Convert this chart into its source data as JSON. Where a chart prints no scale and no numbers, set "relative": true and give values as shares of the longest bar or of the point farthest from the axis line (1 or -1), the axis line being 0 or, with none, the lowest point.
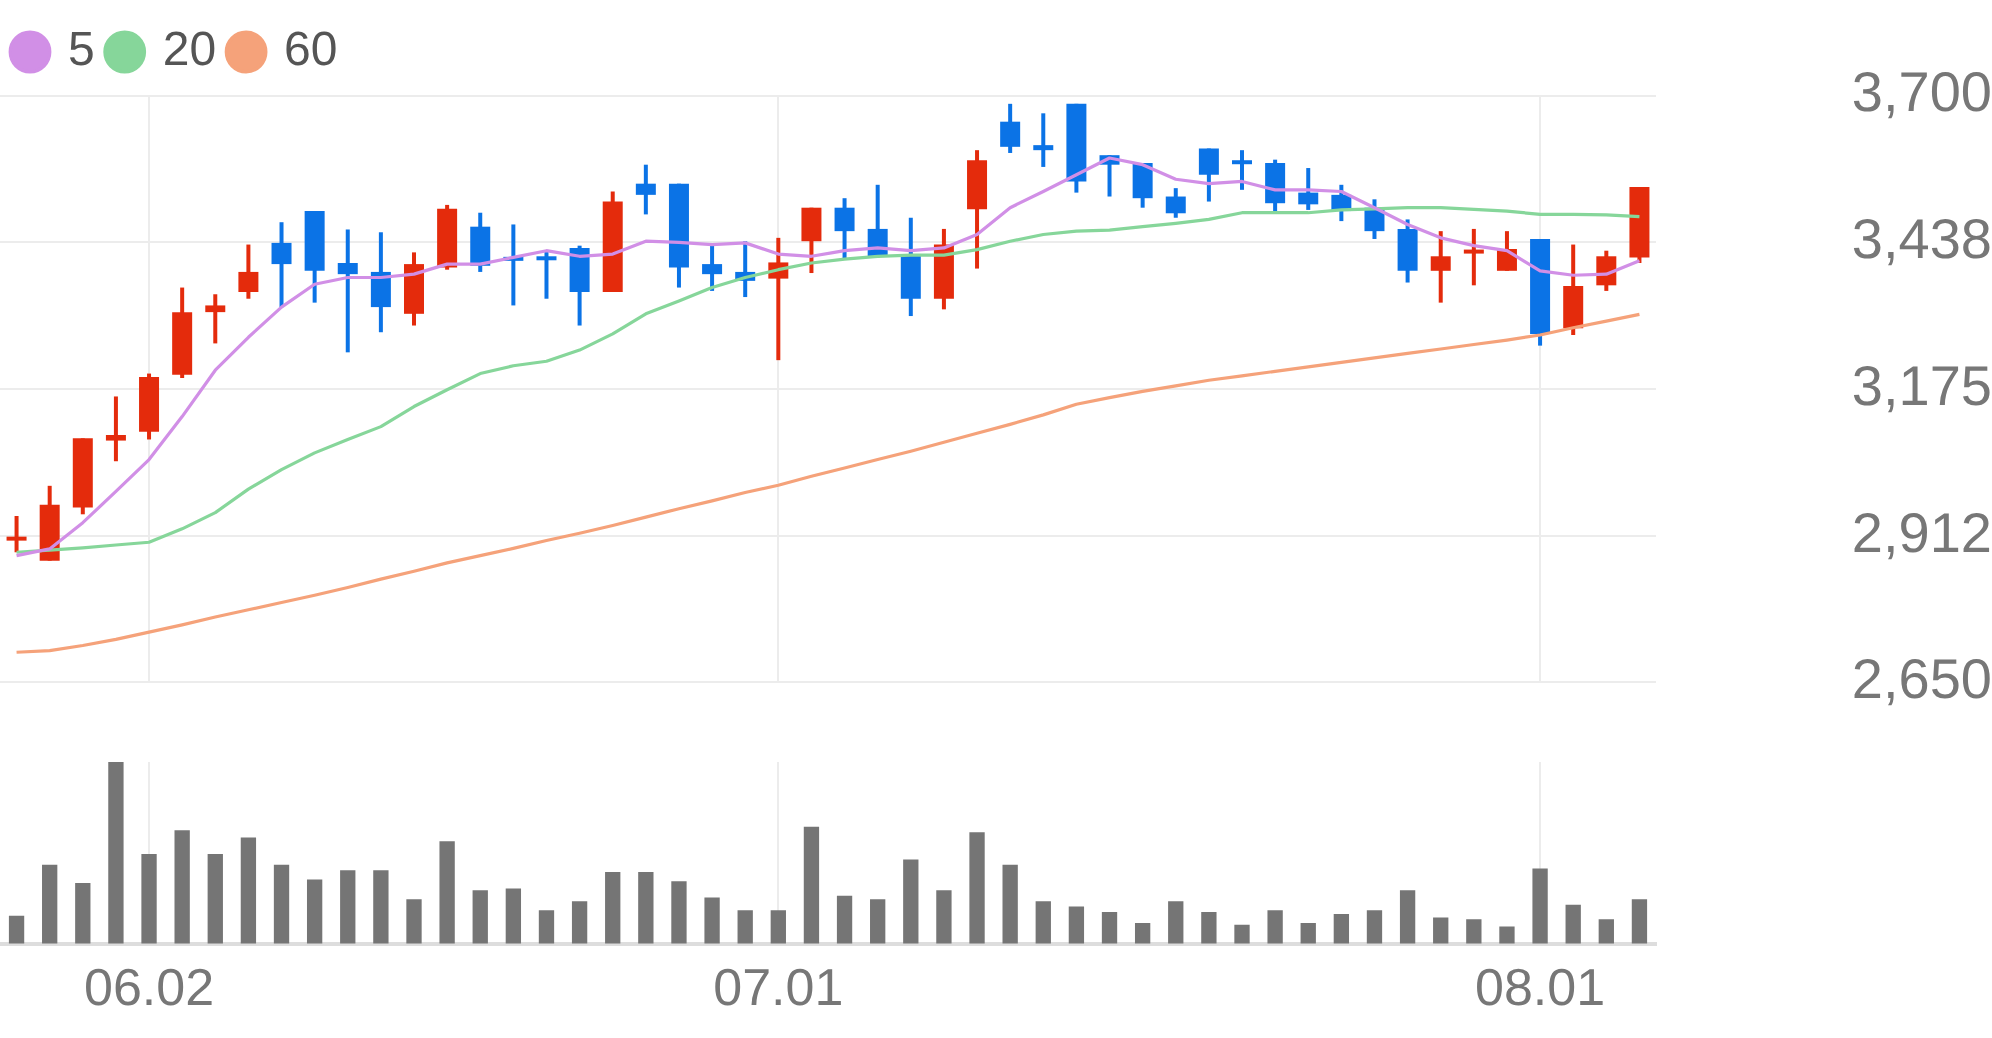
{
  "chart_data": [
    {
      "type": "candlestick",
      "categories": [
        null,
        null,
        null,
        null,
        "06.02",
        null,
        null,
        null,
        null,
        null,
        null,
        null,
        null,
        null,
        null,
        null,
        null,
        null,
        null,
        null,
        null,
        null,
        null,
        "07.01",
        null,
        null,
        null,
        null,
        null,
        null,
        null,
        null,
        null,
        null,
        null,
        null,
        null,
        null,
        null,
        null,
        null,
        null,
        null,
        null,
        null,
        null,
        "08.01",
        null,
        null,
        null
      ],
      "ohlc": [
        [
          2904,
          2948,
          2883,
          2911
        ],
        [
          2868,
          3002,
          2868,
          2968
        ],
        [
          2963,
          3087,
          2951,
          3087
        ],
        [
          3083,
          3162,
          3046,
          3093
        ],
        [
          3099,
          3203,
          3085,
          3197
        ],
        [
          3201,
          3357,
          3195,
          3313
        ],
        [
          3313,
          3345,
          3257,
          3325
        ],
        [
          3349,
          3434,
          3337,
          3385
        ],
        [
          3437,
          3474,
          3322,
          3399
        ],
        [
          3494,
          3494,
          3330,
          3387
        ],
        [
          3401,
          3461,
          3241,
          3381
        ],
        [
          3385,
          3456,
          3277,
          3322
        ],
        [
          3310,
          3420,
          3289,
          3399
        ],
        [
          3393,
          3505,
          3389,
          3498
        ],
        [
          3466,
          3491,
          3385,
          3396
        ],
        [
          3412,
          3470,
          3325,
          3406
        ],
        [
          3413,
          3423,
          3337,
          3408
        ],
        [
          3428,
          3432,
          3289,
          3349
        ],
        [
          3349,
          3529,
          3349,
          3511
        ],
        [
          3543,
          3577,
          3488,
          3523
        ],
        [
          3543,
          3543,
          3357,
          3393
        ],
        [
          3399,
          3432,
          3351,
          3381
        ],
        [
          3385,
          3440,
          3340,
          3369
        ],
        [
          3373,
          3446,
          3227,
          3402
        ],
        [
          3440,
          3500,
          3383,
          3500
        ],
        [
          3500,
          3517,
          3408,
          3458
        ],
        [
          3462,
          3541,
          3411,
          3413
        ],
        [
          3417,
          3482,
          3306,
          3337
        ],
        [
          3337,
          3462,
          3318,
          3434
        ],
        [
          3497,
          3603,
          3391,
          3585
        ],
        [
          3654,
          3686,
          3598,
          3609
        ],
        [
          3612,
          3669,
          3573,
          3603
        ],
        [
          3686,
          3686,
          3527,
          3547
        ],
        [
          3594,
          3594,
          3520,
          3577
        ],
        [
          3580,
          3580,
          3500,
          3517
        ],
        [
          3520,
          3535,
          3482,
          3490
        ],
        [
          3606,
          3606,
          3511,
          3559
        ],
        [
          3585,
          3603,
          3532,
          3579
        ],
        [
          3580,
          3586,
          3491,
          3508
        ],
        [
          3527,
          3571,
          3496,
          3506
        ],
        [
          3523,
          3541,
          3476,
          3494
        ],
        [
          3500,
          3515,
          3444,
          3458
        ],
        [
          3462,
          3479,
          3366,
          3387
        ],
        [
          3387,
          3458,
          3330,
          3413
        ],
        [
          3420,
          3462,
          3361,
          3425
        ],
        [
          3387,
          3458,
          3387,
          3426
        ],
        [
          3444,
          3444,
          3253,
          3274
        ],
        [
          3284,
          3434,
          3272,
          3360
        ],
        [
          3361,
          3423,
          3351,
          3413
        ],
        [
          3411,
          3537,
          3401,
          3537
        ]
      ],
      "colors": [
        "#e42b0c",
        "#e42b0c",
        "#e42b0c",
        "#e42b0c",
        "#e42b0c",
        "#e42b0c",
        "#e42b0c",
        "#e42b0c",
        "#0b73e6",
        "#0b73e6",
        "#0b73e6",
        "#0b73e6",
        "#e42b0c",
        "#e42b0c",
        "#0b73e6",
        "#0b73e6",
        "#0b73e6",
        "#0b73e6",
        "#e42b0c",
        "#0b73e6",
        "#0b73e6",
        "#0b73e6",
        "#0b73e6",
        "#e42b0c",
        "#e42b0c",
        "#0b73e6",
        "#0b73e6",
        "#0b73e6",
        "#e42b0c",
        "#e42b0c",
        "#0b73e6",
        "#0b73e6",
        "#0b73e6",
        "#0b73e6",
        "#0b73e6",
        "#0b73e6",
        "#0b73e6",
        "#0b73e6",
        "#0b73e6",
        "#0b73e6",
        "#0b73e6",
        "#0b73e6",
        "#0b73e6",
        "#e42b0c",
        "#e42b0c",
        "#e42b0c",
        "#0b73e6",
        "#e42b0c",
        "#e42b0c",
        "#e42b0c"
      ],
      "series": [
        {
          "name": "5",
          "type": "line",
          "color": "#d18fe6",
          "values": [
            2877,
            2889,
            2936,
            2992,
            3049,
            3126,
            3209,
            3268,
            3322,
            3363,
            3375,
            3375,
            3381,
            3399,
            3399,
            3411,
            3423,
            3413,
            3417,
            3440,
            3438,
            3434,
            3437,
            3417,
            3413,
            3423,
            3428,
            3423,
            3428,
            3452,
            3500,
            3529,
            3559,
            3589,
            3577,
            3551,
            3543,
            3547,
            3532,
            3532,
            3529,
            3500,
            3470,
            3446,
            3432,
            3423,
            3387,
            3379,
            3381,
            3405
          ]
        },
        {
          "name": "20",
          "type": "line",
          "color": "#86d69a",
          "values": [
            2883,
            2887,
            2891,
            2896,
            2901,
            2925,
            2954,
            2996,
            3031,
            3061,
            3085,
            3108,
            3144,
            3174,
            3203,
            3217,
            3225,
            3245,
            3274,
            3310,
            3333,
            3357,
            3375,
            3389,
            3401,
            3408,
            3413,
            3415,
            3415,
            3425,
            3440,
            3452,
            3458,
            3460,
            3466,
            3472,
            3479,
            3491,
            3491,
            3491,
            3496,
            3498,
            3500,
            3500,
            3497,
            3494,
            3488,
            3488,
            3487,
            3484
          ]
        },
        {
          "name": "60",
          "type": "line",
          "color": "#f5a27a",
          "values": [
            2704,
            2707,
            2716,
            2727,
            2740,
            2753,
            2767,
            2780,
            2793,
            2806,
            2820,
            2835,
            2849,
            2864,
            2877,
            2890,
            2904,
            2917,
            2931,
            2946,
            2961,
            2975,
            2990,
            3003,
            3019,
            3034,
            3049,
            3064,
            3080,
            3096,
            3112,
            3129,
            3148,
            3160,
            3171,
            3181,
            3191,
            3199,
            3207,
            3215,
            3223,
            3231,
            3239,
            3247,
            3255,
            3263,
            3272,
            3285,
            3297,
            3309
          ]
        }
      ],
      "ylim": [
        2650,
        3700
      ],
      "yticks": [
        {
          "value": 2650,
          "label": "2,650"
        },
        {
          "value": 2912,
          "label": "2,912"
        },
        {
          "value": 3175,
          "label": "3,175"
        },
        {
          "value": 3438,
          "label": "3,438"
        },
        {
          "value": 3700,
          "label": "3,700"
        }
      ],
      "grid": true,
      "legend": "top left",
      "tick_labels": "y"
    },
    {
      "type": "bar",
      "categories": [
        null,
        null,
        null,
        null,
        "06.02",
        null,
        null,
        null,
        null,
        null,
        null,
        null,
        null,
        null,
        null,
        null,
        null,
        null,
        null,
        null,
        null,
        null,
        null,
        "07.01",
        null,
        null,
        null,
        null,
        null,
        null,
        null,
        null,
        null,
        null,
        null,
        null,
        null,
        null,
        null,
        null,
        null,
        null,
        null,
        null,
        null,
        null,
        "08.01",
        null,
        null,
        null
      ],
      "values": [
        0.15,
        0.43,
        0.33,
        1,
        0.49,
        0.62,
        0.49,
        0.58,
        0.43,
        0.35,
        0.4,
        0.4,
        0.24,
        0.56,
        0.29,
        0.3,
        0.18,
        0.23,
        0.39,
        0.39,
        0.34,
        0.25,
        0.18,
        0.18,
        0.64,
        0.26,
        0.24,
        0.46,
        0.29,
        0.61,
        0.43,
        0.23,
        0.2,
        0.17,
        0.11,
        0.23,
        0.17,
        0.1,
        0.18,
        0.11,
        0.16,
        0.18,
        0.29,
        0.14,
        0.13,
        0.09,
        0.41,
        0.21,
        0.13,
        0.24
      ],
      "color": "#757575",
      "relative": true,
      "grid": "x",
      "tick_labels": "x"
    }
  ]
}
